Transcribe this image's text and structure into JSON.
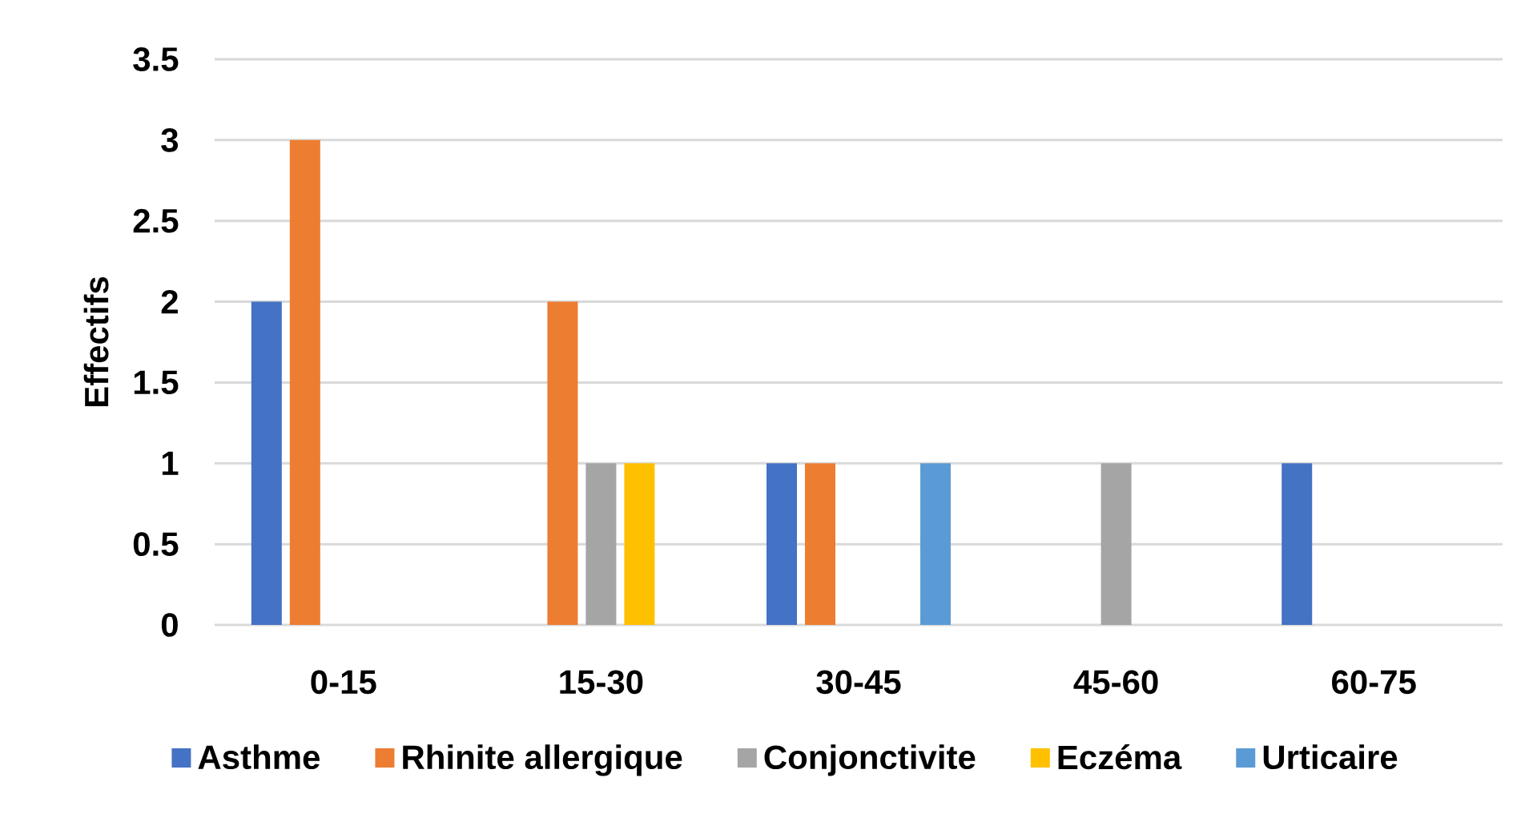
{
  "chart_data": {
    "type": "bar",
    "ylabel": "Effectifs",
    "categories": [
      "0-15",
      "15-30",
      "30-45",
      "45-60",
      "60-75"
    ],
    "series": [
      {
        "name": "Asthme",
        "color": "#4472c4",
        "values": [
          2,
          0,
          1,
          0,
          1
        ]
      },
      {
        "name": "Rhinite allergique",
        "color": "#ed7d31",
        "values": [
          3,
          2,
          1,
          0,
          0
        ]
      },
      {
        "name": "Conjonctivite",
        "color": "#a5a5a5",
        "values": [
          0,
          1,
          0,
          1,
          0
        ]
      },
      {
        "name": "Eczéma",
        "color": "#ffc000",
        "values": [
          0,
          1,
          0,
          0,
          0
        ]
      },
      {
        "name": "Urticaire",
        "color": "#5b9bd5",
        "values": [
          0,
          0,
          1,
          0,
          0
        ]
      }
    ],
    "ylim": [
      0,
      3.5
    ],
    "yticks": [
      0,
      0.5,
      1,
      1.5,
      2,
      2.5,
      3,
      3.5
    ],
    "grid": "y",
    "legend": "bottom"
  }
}
